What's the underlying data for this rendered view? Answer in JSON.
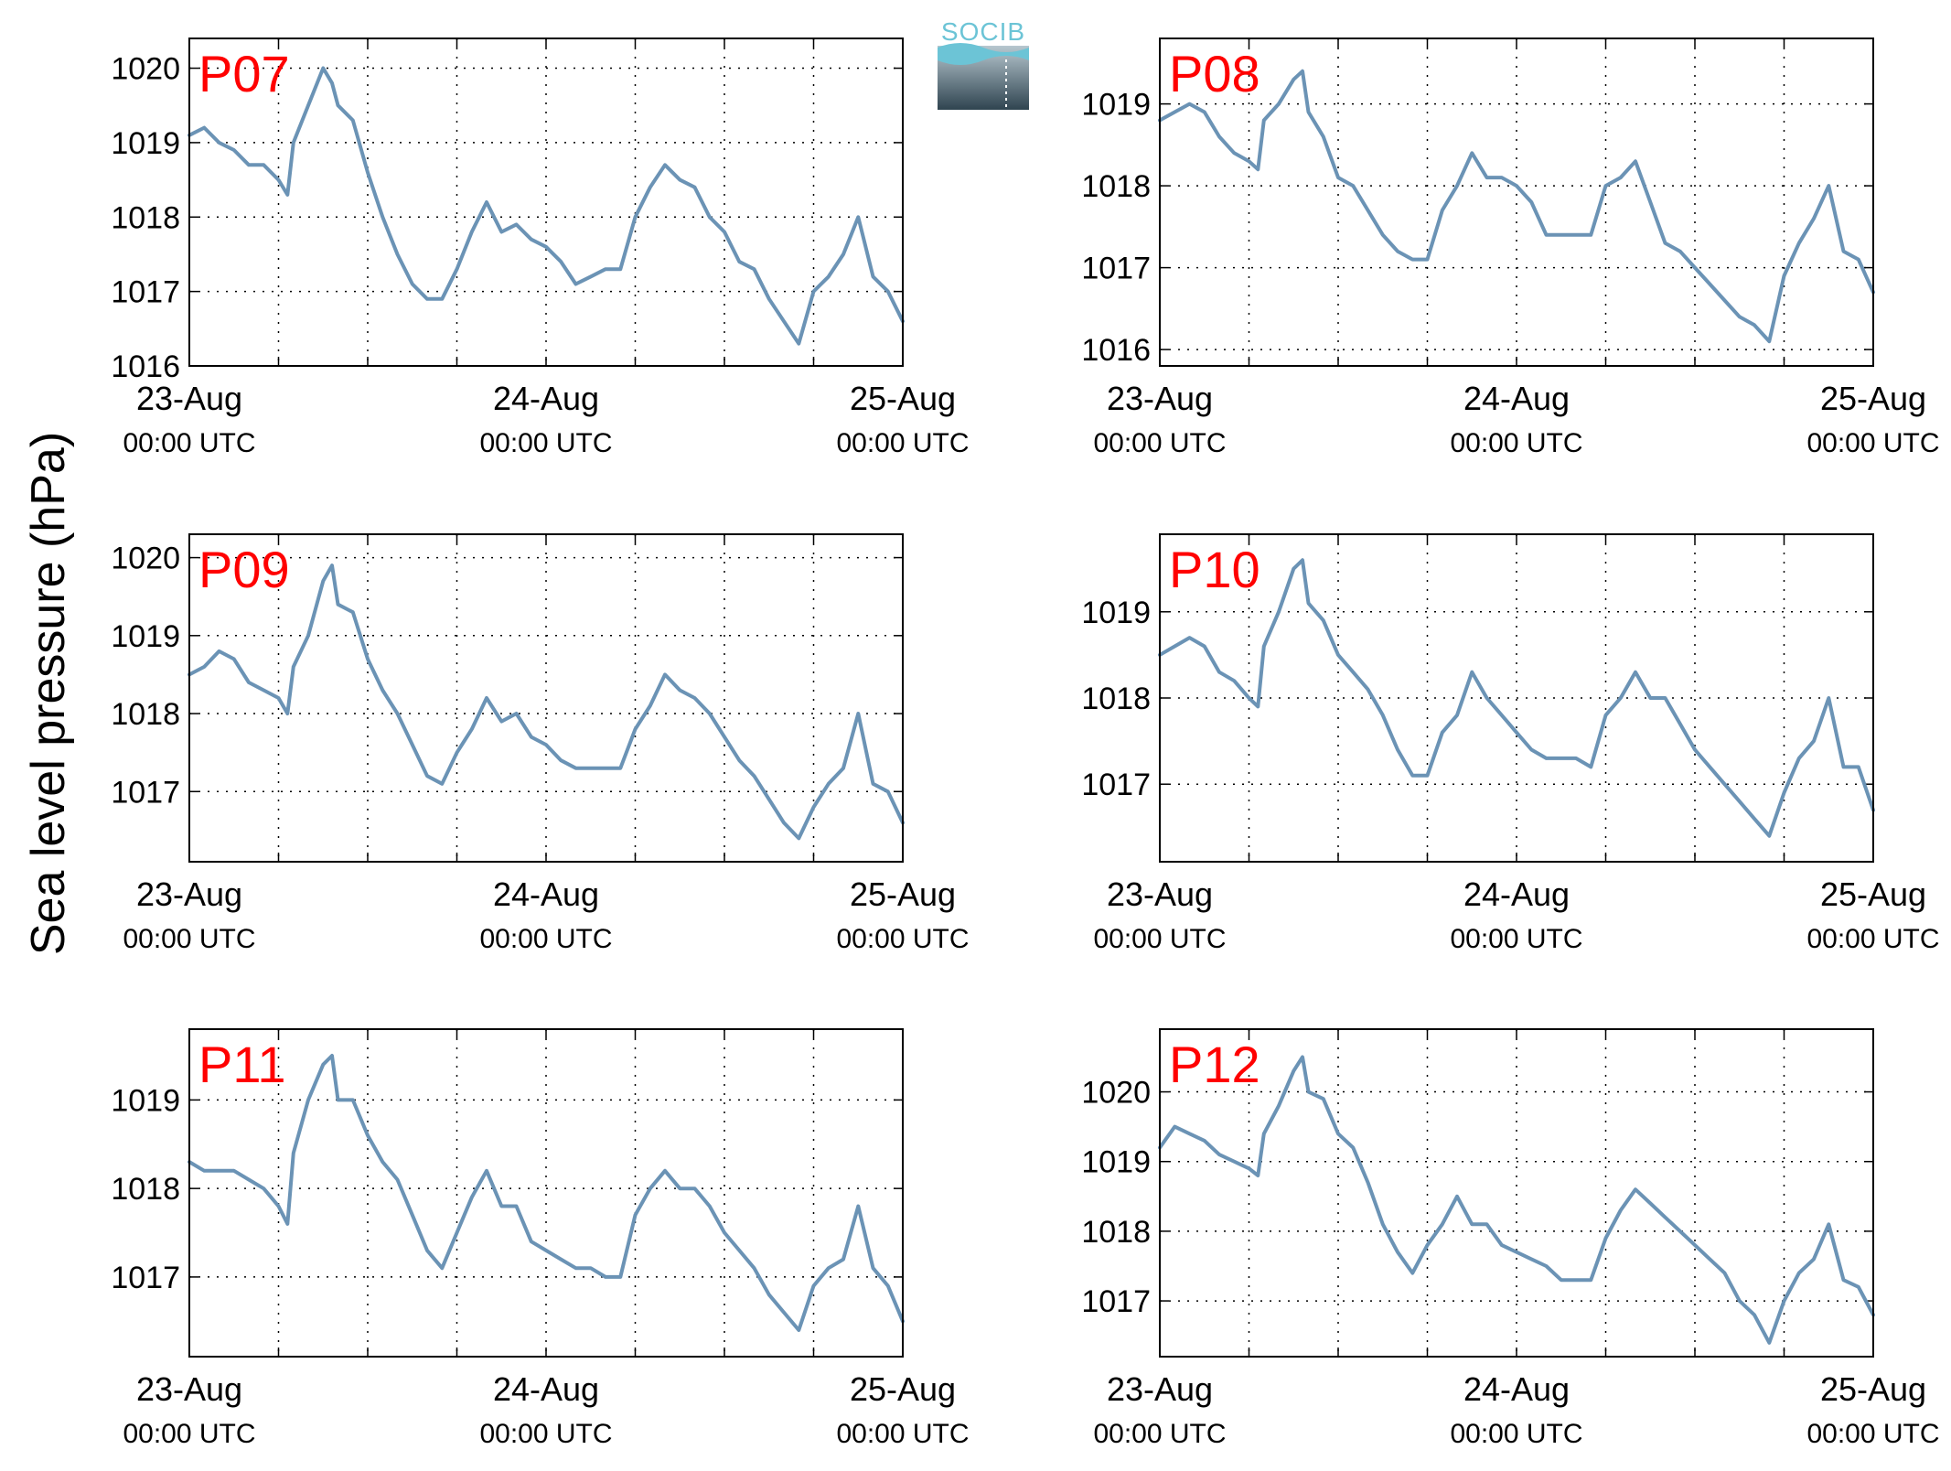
{
  "figure": {
    "ylabel": "Sea level pressure (hPa)",
    "logo_text": "SOCIB",
    "line_color": "#6b93b5",
    "label_color": "#ff0000",
    "grid": "dotted"
  },
  "chart_data": [
    {
      "type": "line",
      "label": "P07",
      "x_ticks": [
        0,
        24,
        48
      ],
      "x_tick_labels": [
        [
          "23-Aug",
          "00:00 UTC"
        ],
        [
          "24-Aug",
          "00:00 UTC"
        ],
        [
          "25-Aug",
          "00:00 UTC"
        ]
      ],
      "xlim": [
        0,
        48
      ],
      "ylim": [
        1016,
        1020.4
      ],
      "y_ticks": [
        1016,
        1017,
        1018,
        1019,
        1020
      ],
      "grid": true,
      "x": [
        0,
        1,
        2,
        3,
        4,
        5,
        6,
        6.6,
        7,
        8,
        9,
        9.6,
        10,
        11,
        12,
        13,
        14,
        15,
        16,
        17,
        18,
        19,
        20,
        21,
        22,
        23,
        24,
        25,
        26,
        27,
        28,
        29,
        30,
        31,
        32,
        33,
        34,
        35,
        36,
        37,
        38,
        39,
        40,
        41,
        42,
        43,
        44,
        45,
        46,
        47,
        48
      ],
      "y": [
        1019.1,
        1019.2,
        1019.0,
        1018.9,
        1018.7,
        1018.7,
        1018.5,
        1018.3,
        1019.0,
        1019.5,
        1020.0,
        1019.8,
        1019.5,
        1019.3,
        1018.6,
        1018.0,
        1017.5,
        1017.1,
        1016.9,
        1016.9,
        1017.3,
        1017.8,
        1018.2,
        1017.8,
        1017.9,
        1017.7,
        1017.6,
        1017.4,
        1017.1,
        1017.2,
        1017.3,
        1017.3,
        1018.0,
        1018.4,
        1018.7,
        1018.5,
        1018.4,
        1018.0,
        1017.8,
        1017.4,
        1017.3,
        1016.9,
        1016.6,
        1016.3,
        1017.0,
        1017.2,
        1017.5,
        1018.0,
        1017.2,
        1017.0,
        1016.6
      ]
    },
    {
      "type": "line",
      "label": "P08",
      "x_ticks": [
        0,
        24,
        48
      ],
      "x_tick_labels": [
        [
          "23-Aug",
          "00:00 UTC"
        ],
        [
          "24-Aug",
          "00:00 UTC"
        ],
        [
          "25-Aug",
          "00:00 UTC"
        ]
      ],
      "xlim": [
        0,
        48
      ],
      "ylim": [
        1015.8,
        1019.8
      ],
      "y_ticks": [
        1016,
        1017,
        1018,
        1019
      ],
      "grid": true,
      "x": [
        0,
        1,
        2,
        3,
        4,
        5,
        6,
        6.6,
        7,
        8,
        9,
        9.6,
        10,
        11,
        12,
        13,
        14,
        15,
        16,
        17,
        18,
        19,
        20,
        21,
        22,
        23,
        24,
        25,
        26,
        27,
        28,
        29,
        30,
        31,
        32,
        33,
        34,
        35,
        36,
        37,
        38,
        39,
        40,
        41,
        42,
        43,
        44,
        45,
        46,
        47,
        48
      ],
      "y": [
        1018.8,
        1018.9,
        1019.0,
        1018.9,
        1018.6,
        1018.4,
        1018.3,
        1018.2,
        1018.8,
        1019.0,
        1019.3,
        1019.4,
        1018.9,
        1018.6,
        1018.1,
        1018.0,
        1017.7,
        1017.4,
        1017.2,
        1017.1,
        1017.1,
        1017.7,
        1018.0,
        1018.4,
        1018.1,
        1018.1,
        1018.0,
        1017.8,
        1017.4,
        1017.4,
        1017.4,
        1017.4,
        1018.0,
        1018.1,
        1018.3,
        1017.8,
        1017.3,
        1017.2,
        1017.0,
        1016.8,
        1016.6,
        1016.4,
        1016.3,
        1016.1,
        1016.9,
        1017.3,
        1017.6,
        1018.0,
        1017.2,
        1017.1,
        1016.7
      ]
    },
    {
      "type": "line",
      "label": "P09",
      "x_ticks": [
        0,
        24,
        48
      ],
      "x_tick_labels": [
        [
          "23-Aug",
          "00:00 UTC"
        ],
        [
          "24-Aug",
          "00:00 UTC"
        ],
        [
          "25-Aug",
          "00:00 UTC"
        ]
      ],
      "xlim": [
        0,
        48
      ],
      "ylim": [
        1016.1,
        1020.3
      ],
      "y_ticks": [
        1017,
        1018,
        1019,
        1020
      ],
      "grid": true,
      "x": [
        0,
        1,
        2,
        3,
        4,
        5,
        6,
        6.6,
        7,
        8,
        9,
        9.6,
        10,
        11,
        12,
        13,
        14,
        15,
        16,
        17,
        18,
        19,
        20,
        21,
        22,
        23,
        24,
        25,
        26,
        27,
        28,
        29,
        30,
        31,
        32,
        33,
        34,
        35,
        36,
        37,
        38,
        39,
        40,
        41,
        42,
        43,
        44,
        45,
        46,
        47,
        48
      ],
      "y": [
        1018.5,
        1018.6,
        1018.8,
        1018.7,
        1018.4,
        1018.3,
        1018.2,
        1018.0,
        1018.6,
        1019.0,
        1019.7,
        1019.9,
        1019.4,
        1019.3,
        1018.7,
        1018.3,
        1018.0,
        1017.6,
        1017.2,
        1017.1,
        1017.5,
        1017.8,
        1018.2,
        1017.9,
        1018.0,
        1017.7,
        1017.6,
        1017.4,
        1017.3,
        1017.3,
        1017.3,
        1017.3,
        1017.8,
        1018.1,
        1018.5,
        1018.3,
        1018.2,
        1018.0,
        1017.7,
        1017.4,
        1017.2,
        1016.9,
        1016.6,
        1016.4,
        1016.8,
        1017.1,
        1017.3,
        1018.0,
        1017.1,
        1017.0,
        1016.6
      ]
    },
    {
      "type": "line",
      "label": "P10",
      "x_ticks": [
        0,
        24,
        48
      ],
      "x_tick_labels": [
        [
          "23-Aug",
          "00:00 UTC"
        ],
        [
          "24-Aug",
          "00:00 UTC"
        ],
        [
          "25-Aug",
          "00:00 UTC"
        ]
      ],
      "xlim": [
        0,
        48
      ],
      "ylim": [
        1016.1,
        1019.9
      ],
      "y_ticks": [
        1017,
        1018,
        1019
      ],
      "grid": true,
      "x": [
        0,
        1,
        2,
        3,
        4,
        5,
        6,
        6.6,
        7,
        8,
        9,
        9.6,
        10,
        11,
        12,
        13,
        14,
        15,
        16,
        17,
        18,
        19,
        20,
        21,
        22,
        23,
        24,
        25,
        26,
        27,
        28,
        29,
        30,
        31,
        32,
        33,
        34,
        35,
        36,
        37,
        38,
        39,
        40,
        41,
        42,
        43,
        44,
        45,
        46,
        47,
        48
      ],
      "y": [
        1018.5,
        1018.6,
        1018.7,
        1018.6,
        1018.3,
        1018.2,
        1018.0,
        1017.9,
        1018.6,
        1019.0,
        1019.5,
        1019.6,
        1019.1,
        1018.9,
        1018.5,
        1018.3,
        1018.1,
        1017.8,
        1017.4,
        1017.1,
        1017.1,
        1017.6,
        1017.8,
        1018.3,
        1018.0,
        1017.8,
        1017.6,
        1017.4,
        1017.3,
        1017.3,
        1017.3,
        1017.2,
        1017.8,
        1018.0,
        1018.3,
        1018.0,
        1018.0,
        1017.7,
        1017.4,
        1017.2,
        1017.0,
        1016.8,
        1016.6,
        1016.4,
        1016.9,
        1017.3,
        1017.5,
        1018.0,
        1017.2,
        1017.2,
        1016.7
      ]
    },
    {
      "type": "line",
      "label": "P11",
      "x_ticks": [
        0,
        24,
        48
      ],
      "x_tick_labels": [
        [
          "23-Aug",
          "00:00 UTC"
        ],
        [
          "24-Aug",
          "00:00 UTC"
        ],
        [
          "25-Aug",
          "00:00 UTC"
        ]
      ],
      "xlim": [
        0,
        48
      ],
      "ylim": [
        1016.1,
        1019.8
      ],
      "y_ticks": [
        1017,
        1018,
        1019
      ],
      "grid": true,
      "x": [
        0,
        1,
        2,
        3,
        4,
        5,
        6,
        6.6,
        7,
        8,
        9,
        9.6,
        10,
        11,
        12,
        13,
        14,
        15,
        16,
        17,
        18,
        19,
        20,
        21,
        22,
        23,
        24,
        25,
        26,
        27,
        28,
        29,
        30,
        31,
        32,
        33,
        34,
        35,
        36,
        37,
        38,
        39,
        40,
        41,
        42,
        43,
        44,
        45,
        46,
        47,
        48
      ],
      "y": [
        1018.3,
        1018.2,
        1018.2,
        1018.2,
        1018.1,
        1018.0,
        1017.8,
        1017.6,
        1018.4,
        1019.0,
        1019.4,
        1019.5,
        1019.0,
        1019.0,
        1018.6,
        1018.3,
        1018.1,
        1017.7,
        1017.3,
        1017.1,
        1017.5,
        1017.9,
        1018.2,
        1017.8,
        1017.8,
        1017.4,
        1017.3,
        1017.2,
        1017.1,
        1017.1,
        1017.0,
        1017.0,
        1017.7,
        1018.0,
        1018.2,
        1018.0,
        1018.0,
        1017.8,
        1017.5,
        1017.3,
        1017.1,
        1016.8,
        1016.6,
        1016.4,
        1016.9,
        1017.1,
        1017.2,
        1017.8,
        1017.1,
        1016.9,
        1016.5
      ]
    },
    {
      "type": "line",
      "label": "P12",
      "x_ticks": [
        0,
        24,
        48
      ],
      "x_tick_labels": [
        [
          "23-Aug",
          "00:00 UTC"
        ],
        [
          "24-Aug",
          "00:00 UTC"
        ],
        [
          "25-Aug",
          "00:00 UTC"
        ]
      ],
      "xlim": [
        0,
        48
      ],
      "ylim": [
        1016.2,
        1020.9
      ],
      "y_ticks": [
        1017,
        1018,
        1019,
        1020
      ],
      "grid": true,
      "x": [
        0,
        1,
        2,
        3,
        4,
        5,
        6,
        6.6,
        7,
        8,
        9,
        9.6,
        10,
        11,
        12,
        13,
        14,
        15,
        16,
        17,
        18,
        19,
        20,
        21,
        22,
        23,
        24,
        25,
        26,
        27,
        28,
        29,
        30,
        31,
        32,
        33,
        34,
        35,
        36,
        37,
        38,
        39,
        40,
        41,
        42,
        43,
        44,
        45,
        46,
        47,
        48
      ],
      "y": [
        1019.2,
        1019.5,
        1019.4,
        1019.3,
        1019.1,
        1019.0,
        1018.9,
        1018.8,
        1019.4,
        1019.8,
        1020.3,
        1020.5,
        1020.0,
        1019.9,
        1019.4,
        1019.2,
        1018.7,
        1018.1,
        1017.7,
        1017.4,
        1017.8,
        1018.1,
        1018.5,
        1018.1,
        1018.1,
        1017.8,
        1017.7,
        1017.6,
        1017.5,
        1017.3,
        1017.3,
        1017.3,
        1017.9,
        1018.3,
        1018.6,
        1018.4,
        1018.2,
        1018.0,
        1017.8,
        1017.6,
        1017.4,
        1017.0,
        1016.8,
        1016.4,
        1017.0,
        1017.4,
        1017.6,
        1018.1,
        1017.3,
        1017.2,
        1016.8
      ]
    }
  ]
}
